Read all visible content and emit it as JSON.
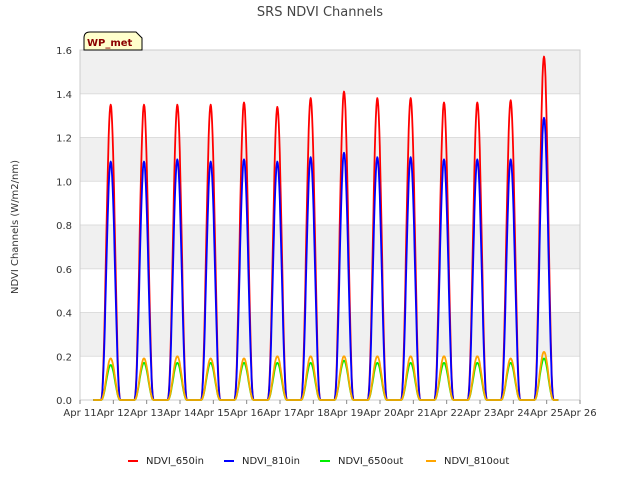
{
  "chart_data": {
    "type": "line",
    "title": "SRS NDVI Channels",
    "ylabel": "NDVI Channels (W/m2/nm)",
    "xlabel": "",
    "badge": "WP_met",
    "x_ticks": [
      "Apr 11",
      "Apr 12",
      "Apr 13",
      "Apr 14",
      "Apr 15",
      "Apr 16",
      "Apr 17",
      "Apr 18",
      "Apr 19",
      "Apr 20",
      "Apr 21",
      "Apr 22",
      "Apr 23",
      "Apr 24",
      "Apr 25",
      "Apr 26"
    ],
    "y_ticks": [
      "0.0",
      "0.2",
      "0.4",
      "0.6",
      "0.8",
      "1.0",
      "1.2",
      "1.4",
      "1.6"
    ],
    "xlim": [
      "Apr 11",
      "Apr 26"
    ],
    "ylim": [
      0,
      1.6
    ],
    "grid": "horizontal bands",
    "legend_position": "bottom",
    "days": [
      "Apr 12",
      "Apr 13",
      "Apr 14",
      "Apr 15",
      "Apr 16",
      "Apr 17",
      "Apr 18",
      "Apr 19",
      "Apr 20",
      "Apr 21",
      "Apr 22",
      "Apr 23",
      "Apr 24",
      "Apr 25"
    ],
    "series": [
      {
        "name": "NDVI_650in",
        "color": "#ff0000",
        "daily_peaks": [
          1.35,
          1.35,
          1.35,
          1.35,
          1.36,
          1.34,
          1.38,
          1.41,
          1.38,
          1.38,
          1.36,
          1.36,
          1.37,
          1.57
        ]
      },
      {
        "name": "NDVI_810in",
        "color": "#0000ff",
        "daily_peaks": [
          1.09,
          1.09,
          1.1,
          1.09,
          1.1,
          1.09,
          1.11,
          1.13,
          1.11,
          1.11,
          1.1,
          1.1,
          1.1,
          1.29
        ]
      },
      {
        "name": "NDVI_650out",
        "color": "#00ee00",
        "daily_peaks": [
          0.16,
          0.17,
          0.17,
          0.17,
          0.17,
          0.17,
          0.17,
          0.18,
          0.17,
          0.17,
          0.17,
          0.17,
          0.17,
          0.19
        ]
      },
      {
        "name": "NDVI_810out",
        "color": "#ffa500",
        "daily_peaks": [
          0.19,
          0.19,
          0.2,
          0.19,
          0.19,
          0.2,
          0.2,
          0.2,
          0.2,
          0.2,
          0.2,
          0.2,
          0.19,
          0.22
        ]
      }
    ]
  }
}
